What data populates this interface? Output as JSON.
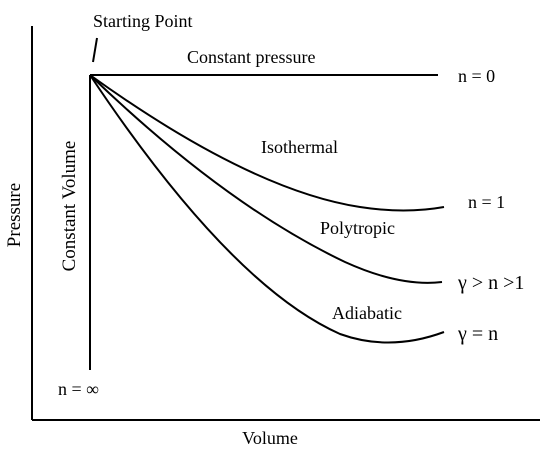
{
  "axes": {
    "x_label": "Volume",
    "y_label": "Pressure"
  },
  "start_label": "Starting Point",
  "processes": [
    {
      "key": "constant_pressure",
      "name": "Constant pressure",
      "n_label": "n = 0"
    },
    {
      "key": "isothermal",
      "name": "Isothermal",
      "n_label": "n = 1"
    },
    {
      "key": "polytropic",
      "name": "Polytropic",
      "n_label": "γ > n >1"
    },
    {
      "key": "adiabatic",
      "name": "Adiabatic",
      "n_label": "γ = n"
    },
    {
      "key": "constant_volume",
      "name": "Constant Volume",
      "n_label": "n = ∞"
    }
  ]
}
